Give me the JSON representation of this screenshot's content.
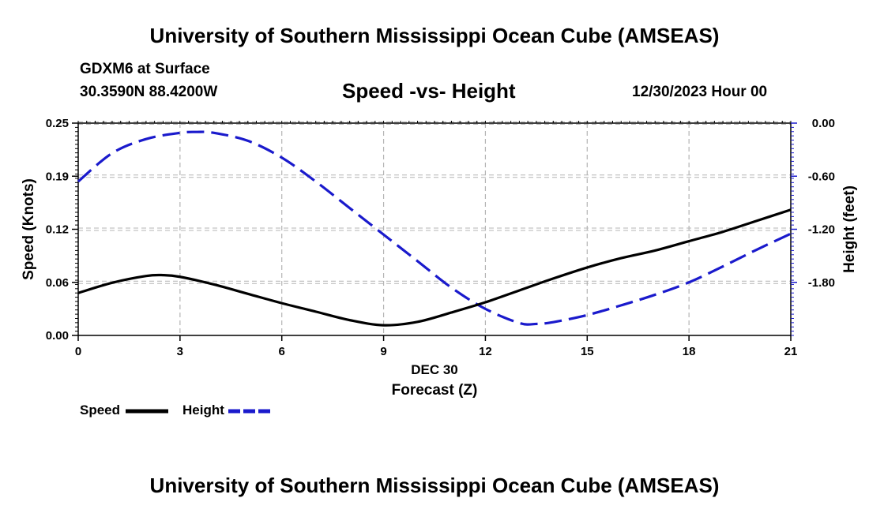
{
  "header": {
    "title_top": "University of Southern Mississippi Ocean Cube (AMSEAS)",
    "station": "GDXM6 at Surface",
    "coords": "30.3590N  88.4200W",
    "date": "12/30/2023 Hour 00",
    "title_bottom": "University of Southern Mississippi Ocean Cube (AMSEAS)"
  },
  "legend": {
    "speed": "Speed",
    "height": "Height"
  },
  "colors": {
    "speed": "#000000",
    "height": "#1a1acc",
    "grid": "#b4b4b4"
  },
  "chart_data": {
    "type": "line",
    "title": "Speed -vs- Height",
    "xlabel": "Forecast (Z)",
    "xsublabel": "DEC 30",
    "ylabel": "Speed (Knots)",
    "y2label": "Height (feet)",
    "xlim": [
      0,
      21
    ],
    "ylim": [
      0,
      0.25
    ],
    "y2lim": [
      -2.4,
      0.0
    ],
    "xticks": [
      0,
      3,
      6,
      9,
      12,
      15,
      18,
      21
    ],
    "xtick_labels": [
      "0",
      "3",
      "6",
      "9",
      "12",
      "15",
      "18",
      "21"
    ],
    "yticks": [
      0,
      0.0625,
      0.125,
      0.1875,
      0.25
    ],
    "ytick_labels": [
      "0.00",
      "0.06",
      "0.12",
      "0.19",
      "0.25"
    ],
    "y2ticks": [
      0.0,
      -0.6,
      -1.2,
      -1.8
    ],
    "y2tick_labels": [
      "0.00",
      "-0.60",
      "-1.20",
      "-1.80"
    ],
    "grid": true,
    "series": [
      {
        "name": "Speed",
        "axis": "left",
        "style": "solid",
        "x": [
          0,
          1,
          2,
          2.5,
          3,
          4,
          5,
          6,
          7,
          8,
          9,
          10,
          11,
          12,
          13,
          14,
          15,
          16,
          17,
          18,
          19,
          20,
          21
        ],
        "values": [
          0.05,
          0.062,
          0.07,
          0.071,
          0.069,
          0.06,
          0.049,
          0.038,
          0.028,
          0.018,
          0.012,
          0.016,
          0.027,
          0.039,
          0.053,
          0.067,
          0.08,
          0.091,
          0.1,
          0.111,
          0.122,
          0.135,
          0.148
        ]
      },
      {
        "name": "Height",
        "axis": "right",
        "style": "dashed",
        "x": [
          0,
          1,
          2,
          3,
          3.5,
          4,
          5,
          6,
          7,
          8,
          9,
          10,
          11,
          12,
          13,
          13.5,
          14,
          15,
          16,
          17,
          18,
          19,
          20,
          21
        ],
        "values": [
          -0.66,
          -0.34,
          -0.18,
          -0.11,
          -0.1,
          -0.11,
          -0.2,
          -0.39,
          -0.66,
          -0.96,
          -1.26,
          -1.56,
          -1.86,
          -2.1,
          -2.26,
          -2.27,
          -2.25,
          -2.17,
          -2.06,
          -1.94,
          -1.8,
          -1.62,
          -1.43,
          -1.25
        ]
      }
    ]
  }
}
